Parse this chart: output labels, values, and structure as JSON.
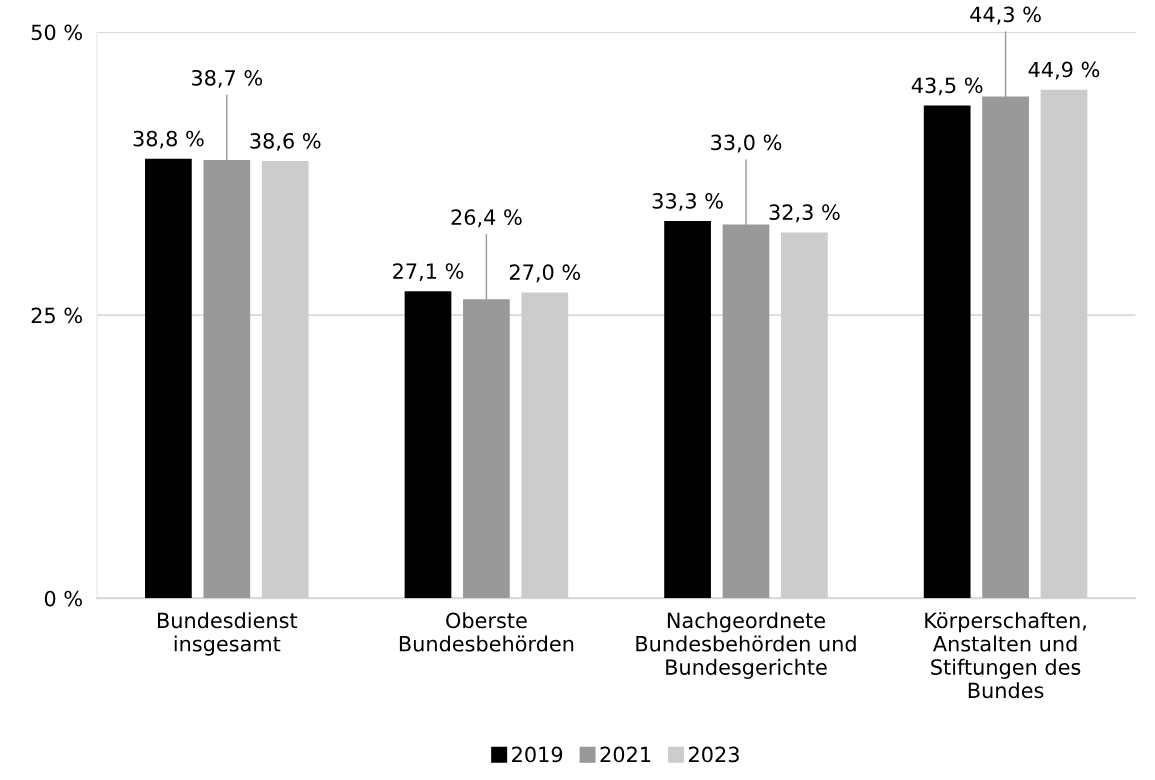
{
  "chart_data": {
    "type": "bar",
    "categories": [
      "Bundesdienst\ninsgesamt",
      "Oberste\nBundesbehörden",
      "Nachgeordnete\nBundesbehörden und\nBundesgerichte",
      "Körperschaften,\nAnstalten und\nStiftungen des\nBundes"
    ],
    "series": [
      {
        "name": "2019",
        "color": "#000000",
        "values": [
          38.8,
          27.1,
          33.3,
          43.5
        ],
        "value_labels": [
          "38,8 %",
          "27,1 %",
          "33,3 %",
          "43,5 %"
        ]
      },
      {
        "name": "2021",
        "color": "#999999",
        "values": [
          38.7,
          26.4,
          33.0,
          44.3
        ],
        "value_labels": [
          "38,7 %",
          "26,4 %",
          "33,0 %",
          "44,3 %"
        ]
      },
      {
        "name": "2023",
        "color": "#cccccc",
        "values": [
          38.6,
          27.0,
          32.3,
          44.9
        ],
        "value_labels": [
          "38,6 %",
          "27,0 %",
          "32,3 %",
          "44,9 %"
        ]
      }
    ],
    "ylim": [
      0,
      50
    ],
    "yticks": [
      {
        "value": 0,
        "label": "0 %"
      },
      {
        "value": 25,
        "label": "25 %"
      },
      {
        "value": 50,
        "label": "50 %"
      }
    ],
    "grid": "y",
    "legend": "bottom"
  }
}
